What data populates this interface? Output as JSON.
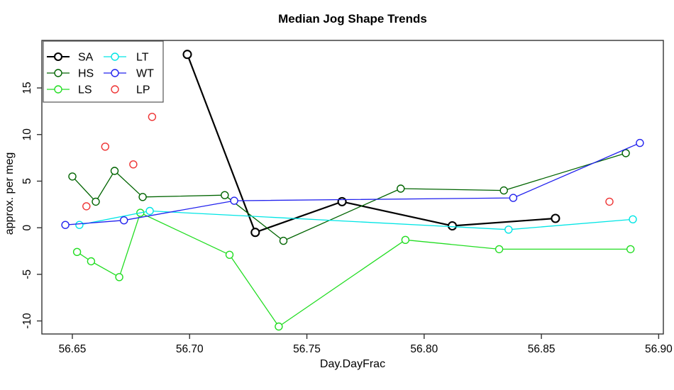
{
  "chart_data": {
    "type": "line",
    "title": "Median Jog Shape Trends",
    "xlabel": "Day.DayFrac",
    "ylabel": "approx. per meg",
    "xlim": [
      56.637,
      56.902
    ],
    "ylim": [
      -11.4,
      20.1
    ],
    "x_ticks": [
      56.65,
      56.7,
      56.75,
      56.8,
      56.85,
      56.9
    ],
    "y_ticks": [
      -10,
      -5,
      0,
      5,
      10,
      15
    ],
    "grid": false,
    "legend_position": "top-left",
    "frame_color": "#333333",
    "series": [
      {
        "name": "SA",
        "color": "#000000",
        "line": true,
        "line_width": 2.2,
        "marker": "open-circle",
        "x": [
          56.699,
          56.728,
          56.765,
          56.812,
          56.856
        ],
        "y": [
          18.6,
          -0.5,
          2.8,
          0.2,
          1.0
        ]
      },
      {
        "name": "HS",
        "color": "#006400",
        "line": true,
        "line_width": 1.3,
        "marker": "open-circle",
        "x": [
          56.65,
          56.66,
          56.668,
          56.68,
          56.715,
          56.74,
          56.79,
          56.834,
          56.886
        ],
        "y": [
          5.5,
          2.8,
          6.1,
          3.3,
          3.5,
          -1.4,
          4.2,
          4.0,
          8.0
        ]
      },
      {
        "name": "LS",
        "color": "#22DD22",
        "line": true,
        "line_width": 1.3,
        "marker": "open-circle",
        "x": [
          56.652,
          56.658,
          56.67,
          56.679,
          56.717,
          56.738,
          56.792,
          56.832,
          56.888
        ],
        "y": [
          -2.6,
          -3.6,
          -5.3,
          1.6,
          -2.9,
          -10.6,
          -1.3,
          -2.3,
          -2.3
        ]
      },
      {
        "name": "LT",
        "color": "#00E5E5",
        "line": true,
        "line_width": 1.3,
        "marker": "open-circle",
        "x": [
          56.653,
          56.683,
          56.836,
          56.889
        ],
        "y": [
          0.3,
          1.8,
          -0.2,
          0.9
        ]
      },
      {
        "name": "WT",
        "color": "#2222EE",
        "line": true,
        "line_width": 1.3,
        "marker": "open-circle",
        "x": [
          56.647,
          56.672,
          56.719,
          56.838,
          56.892
        ],
        "y": [
          0.3,
          0.8,
          2.9,
          3.2,
          9.1
        ]
      },
      {
        "name": "LP",
        "color": "#EE3333",
        "line": false,
        "line_width": 1.3,
        "marker": "open-circle",
        "x": [
          56.656,
          56.664,
          56.676,
          56.684,
          56.879
        ],
        "y": [
          2.3,
          8.7,
          6.8,
          11.9,
          2.8
        ]
      }
    ],
    "legend_columns": [
      [
        "SA",
        "HS",
        "LS"
      ],
      [
        "LT",
        "WT",
        "LP"
      ]
    ]
  }
}
